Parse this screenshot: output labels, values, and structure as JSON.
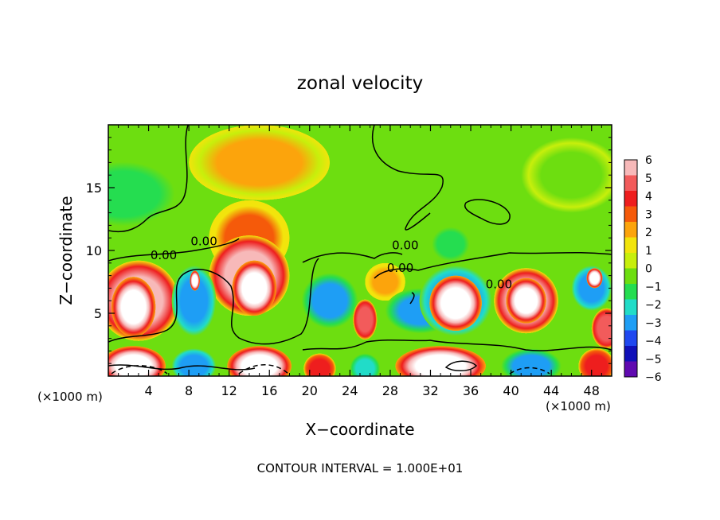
{
  "chart_data": {
    "type": "heatmap",
    "title": "zonal velocity",
    "xlabel": "X−coordinate",
    "ylabel": "Z−coordinate",
    "x_unit_left": "(×1000 m)",
    "x_unit_right": "(×1000 m)",
    "footer": "CONTOUR INTERVAL = 1.000E+01",
    "xlim": [
      0,
      50
    ],
    "ylim": [
      0,
      20
    ],
    "x_ticks": [
      4,
      8,
      12,
      16,
      20,
      24,
      28,
      32,
      36,
      40,
      44,
      48
    ],
    "y_ticks": [
      5,
      10,
      15
    ],
    "grid": false,
    "legend_position": "right",
    "colorbar": {
      "ticks": [
        6,
        5,
        4,
        3,
        2,
        1,
        0,
        -1,
        -2,
        -3,
        -4,
        -5,
        -6
      ],
      "colors": [
        "#f7b9b9",
        "#f25b5b",
        "#ee1e1e",
        "#f55a0a",
        "#fca40c",
        "#f2e40c",
        "#c7ef0c",
        "#6dde10",
        "#25dd50",
        "#21dcc8",
        "#1e9ef5",
        "#2048f0",
        "#1010b8",
        "#600ab0"
      ]
    },
    "contour_labels": [
      {
        "text": "0.00",
        "x": 9.5,
        "z": 10.4
      },
      {
        "text": "0.00",
        "x": 5.5,
        "z": 9.3
      },
      {
        "text": "0.00",
        "x": 29.5,
        "z": 10.1
      },
      {
        "text": "0.00",
        "x": 29.0,
        "z": 8.3
      },
      {
        "text": "0.00",
        "x": 38.8,
        "z": 7.0
      }
    ],
    "cells": [
      {
        "x": 1.5,
        "z": 14.5,
        "v": -2.5,
        "rx": 6,
        "rz": 3
      },
      {
        "x": 46,
        "z": 16,
        "v": -1.5,
        "rx": 5,
        "rz": 3
      },
      {
        "x": 15,
        "z": 17,
        "v": 1.4,
        "rx": 7,
        "rz": 3
      },
      {
        "x": 14,
        "z": 11,
        "v": 2.2,
        "rx": 4,
        "rz": 3
      },
      {
        "x": 14,
        "z": 8,
        "v": 5.5,
        "rx": 4,
        "rz": 3.2
      },
      {
        "x": 14.5,
        "z": 7,
        "v": 9,
        "rx": 2.2,
        "rz": 2.2
      },
      {
        "x": 3,
        "z": 6,
        "v": 5.2,
        "rx": 4,
        "rz": 3.2
      },
      {
        "x": 2.5,
        "z": 5.5,
        "v": 9,
        "rx": 2.2,
        "rz": 2.4
      },
      {
        "x": 8.5,
        "z": 6,
        "v": -4.5,
        "rx": 2.2,
        "rz": 2.8
      },
      {
        "x": 8.6,
        "z": 7.6,
        "v": 9,
        "rx": 0.5,
        "rz": 0.8
      },
      {
        "x": 22,
        "z": 6,
        "v": -4.2,
        "rx": 2.8,
        "rz": 2.2
      },
      {
        "x": 25.5,
        "z": 4.5,
        "v": 4.8,
        "rx": 1.2,
        "rz": 1.6
      },
      {
        "x": 27.5,
        "z": 7.5,
        "v": 1.8,
        "rx": 2,
        "rz": 1.5
      },
      {
        "x": 31,
        "z": 5.2,
        "v": -4.2,
        "rx": 3.5,
        "rz": 1.8
      },
      {
        "x": 34,
        "z": 10.5,
        "v": -2.5,
        "rx": 2.2,
        "rz": 1.6
      },
      {
        "x": 34.5,
        "z": 6,
        "v": -4.8,
        "rx": 3.6,
        "rz": 2.8
      },
      {
        "x": 34.5,
        "z": 5.8,
        "v": 9,
        "rx": 2.6,
        "rz": 2.2
      },
      {
        "x": 41.5,
        "z": 6,
        "v": 5.2,
        "rx": 3.2,
        "rz": 2.6
      },
      {
        "x": 41.5,
        "z": 6,
        "v": 9,
        "rx": 2,
        "rz": 1.8
      },
      {
        "x": 48,
        "z": 7,
        "v": -4.6,
        "rx": 2,
        "rz": 1.8
      },
      {
        "x": 48.3,
        "z": 7.8,
        "v": 9,
        "rx": 0.8,
        "rz": 0.8
      },
      {
        "x": 49.5,
        "z": 3.8,
        "v": 5,
        "rx": 1.5,
        "rz": 1.6
      },
      {
        "x": 2.5,
        "z": 0.8,
        "v": 9,
        "rx": 3.2,
        "rz": 1.6
      },
      {
        "x": 8.5,
        "z": 0.8,
        "v": -4.5,
        "rx": 2.2,
        "rz": 1.4
      },
      {
        "x": 15,
        "z": 0.8,
        "v": 9,
        "rx": 3.2,
        "rz": 1.6
      },
      {
        "x": 21,
        "z": 0.6,
        "v": 4,
        "rx": 1.6,
        "rz": 1.2
      },
      {
        "x": 25.5,
        "z": 0.6,
        "v": -3.5,
        "rx": 1.5,
        "rz": 1.2
      },
      {
        "x": 33,
        "z": 0.8,
        "v": 9,
        "rx": 4.5,
        "rz": 1.6
      },
      {
        "x": 42,
        "z": 0.8,
        "v": -4,
        "rx": 3,
        "rz": 1.4
      },
      {
        "x": 48.5,
        "z": 0.8,
        "v": 4,
        "rx": 1.8,
        "rz": 1.4
      }
    ]
  }
}
